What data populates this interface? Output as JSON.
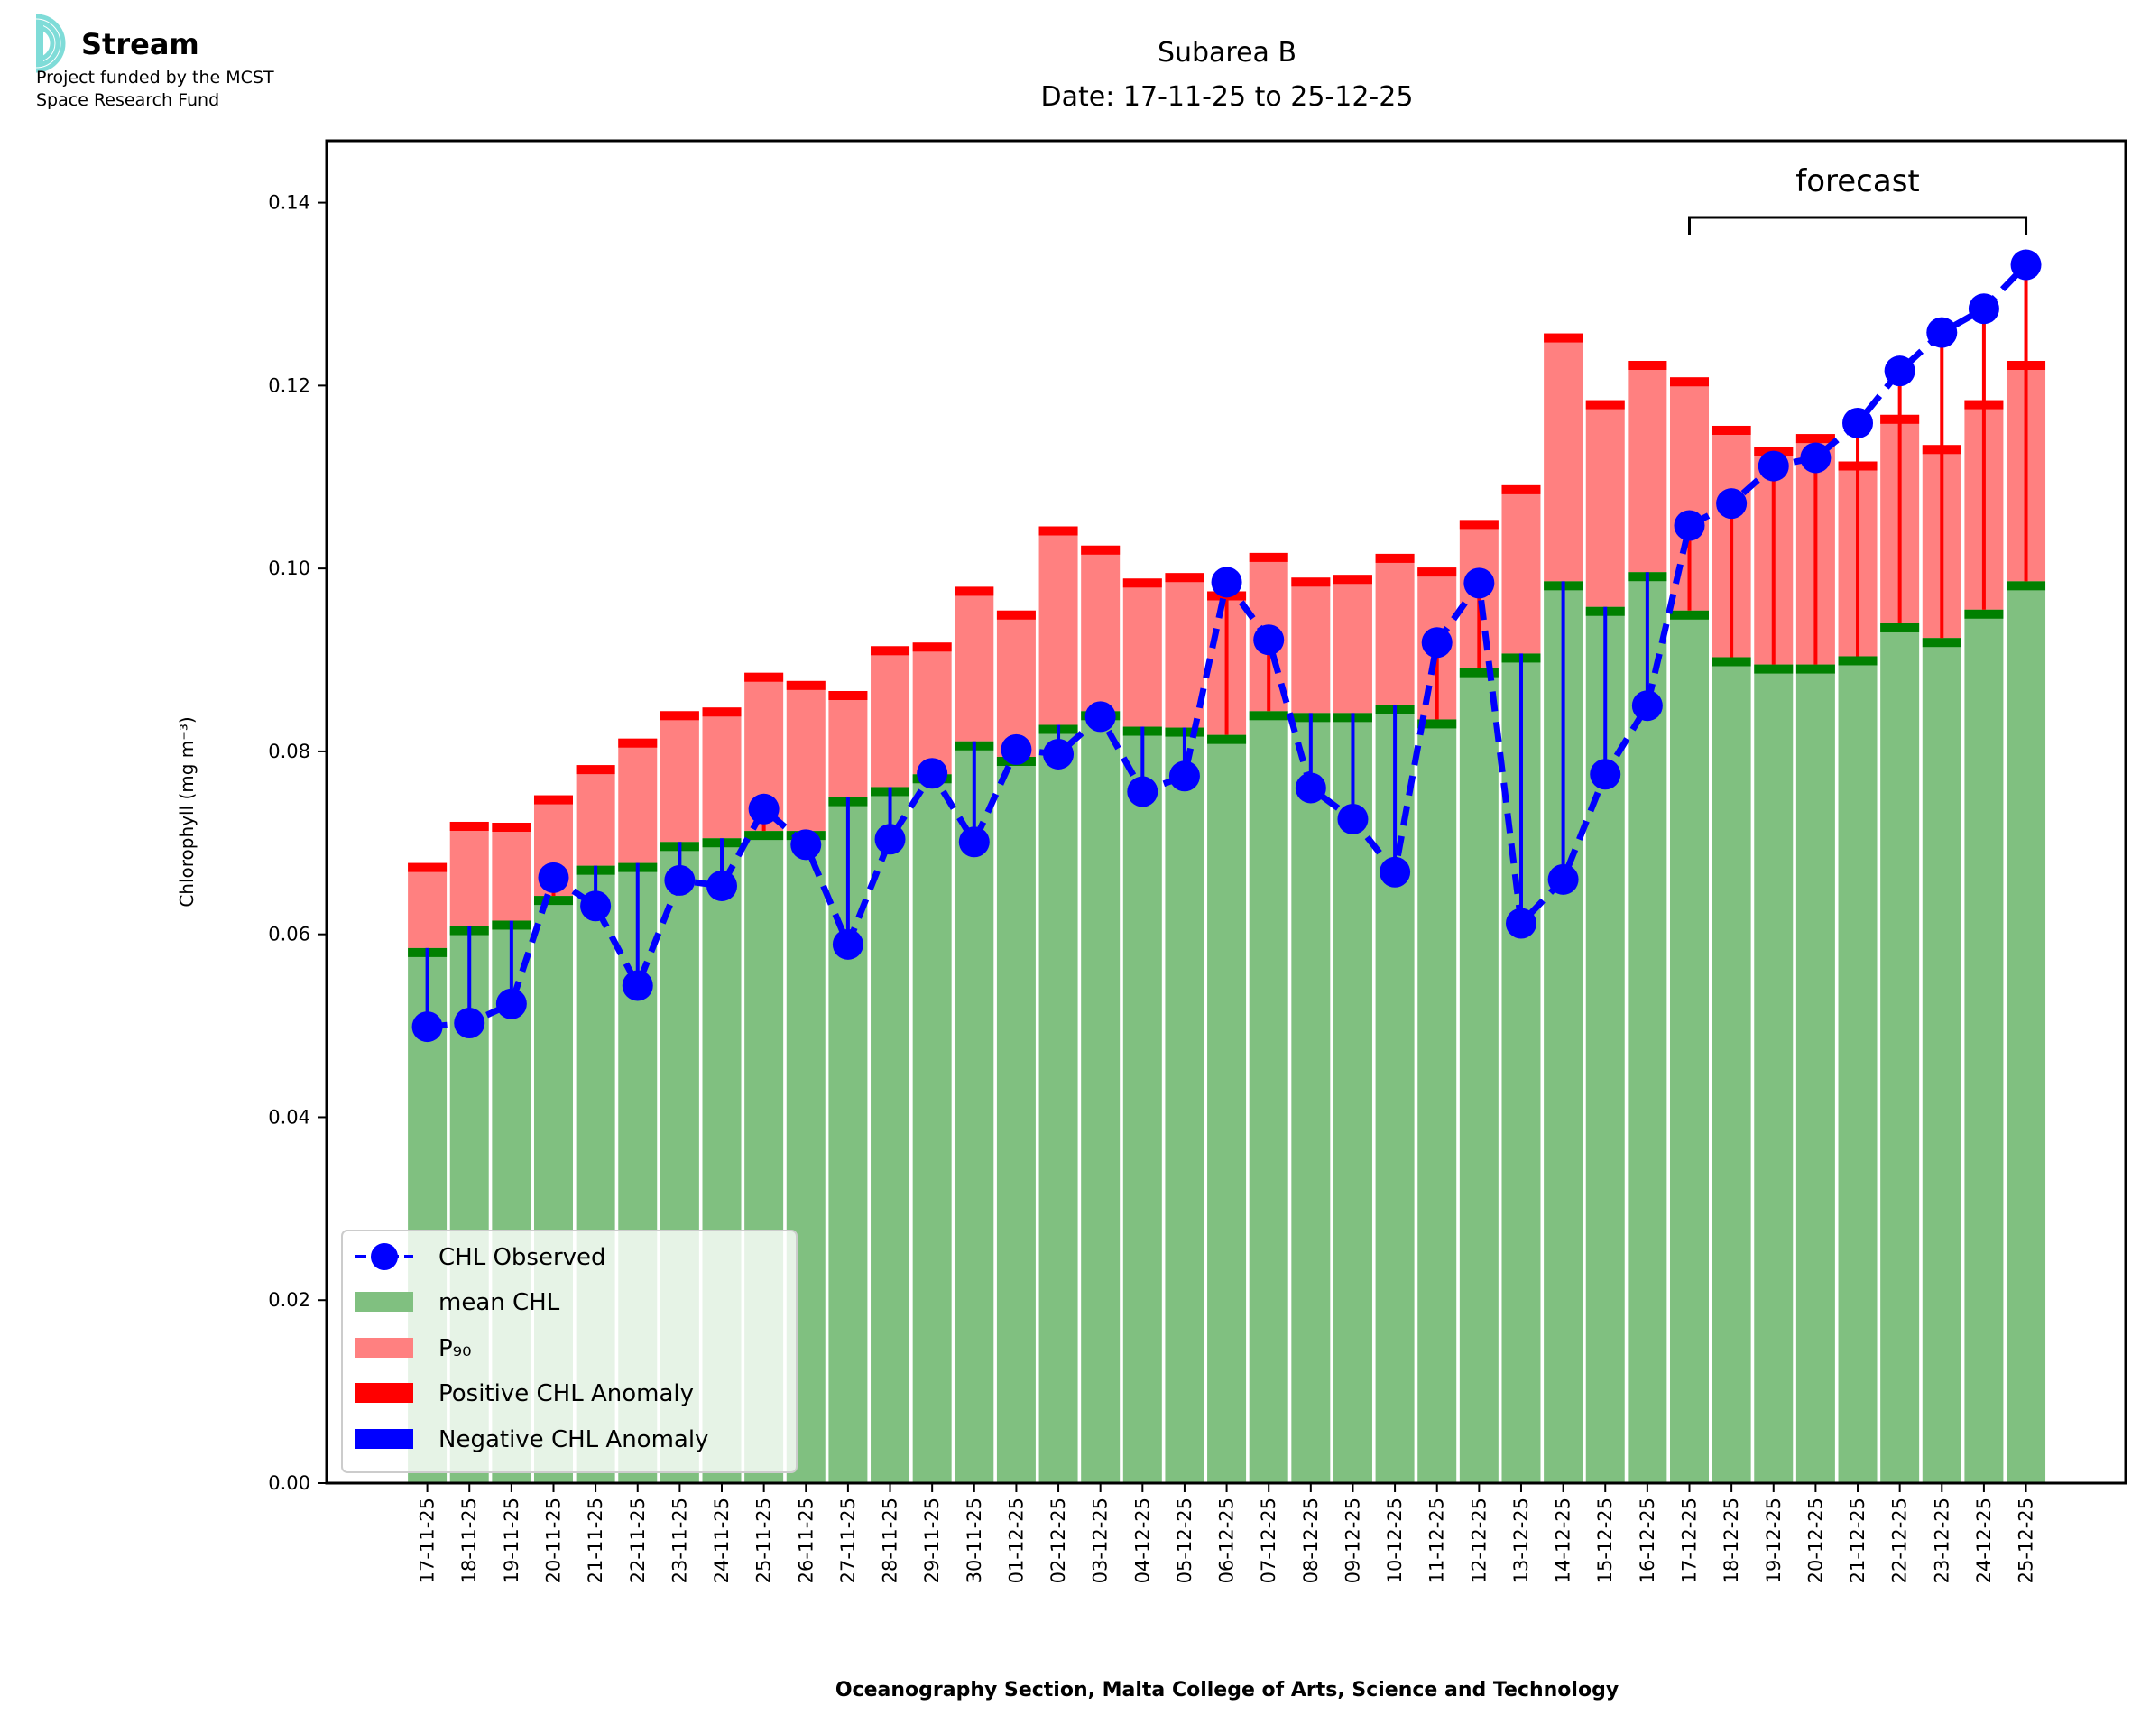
{
  "logo": {
    "name": "Stream",
    "line1": "Project funded by the MCST",
    "line2": "Space Research Fund",
    "color": "#7fdcd8"
  },
  "chart_data": {
    "type": "bar",
    "title_line1": "Subarea B",
    "title_line2": "Date: 17-11-25 to 25-12-25",
    "xlabel": "Oceanography Section, Malta College of Arts, Science and Technology",
    "ylabel": "Chlorophyll (mg m⁻³)",
    "ylim": [
      0,
      0.146
    ],
    "yticks": [
      "0.00",
      "0.02",
      "0.04",
      "0.06",
      "0.08",
      "0.10",
      "0.12",
      "0.14"
    ],
    "annotation": {
      "text": "forecast",
      "from": "17-12-25",
      "to": "25-12-25"
    },
    "legend": {
      "placement": "lower-left",
      "entries": [
        "CHL Observed",
        "mean CHL",
        "P₉₀",
        "Positive CHL Anomaly",
        "Negative CHL Anomaly"
      ]
    },
    "colors": {
      "mean": "#80c080",
      "mean_cap": "#008000",
      "p90": "#ff8080",
      "p90_cap": "#ff0000",
      "observed": "#0000ff",
      "pos": "#ff0000",
      "neg": "#0000ff"
    },
    "categories": [
      "17-11-25",
      "18-11-25",
      "19-11-25",
      "20-11-25",
      "21-11-25",
      "22-11-25",
      "23-11-25",
      "24-11-25",
      "25-11-25",
      "26-11-25",
      "27-11-25",
      "28-11-25",
      "29-11-25",
      "30-11-25",
      "01-12-25",
      "02-12-25",
      "03-12-25",
      "04-12-25",
      "05-12-25",
      "06-12-25",
      "07-12-25",
      "08-12-25",
      "09-12-25",
      "10-12-25",
      "11-12-25",
      "12-12-25",
      "13-12-25",
      "14-12-25",
      "15-12-25",
      "16-12-25",
      "17-12-25",
      "18-12-25",
      "19-12-25",
      "20-12-25",
      "21-12-25",
      "22-12-25",
      "23-12-25",
      "24-12-25",
      "25-12-25"
    ],
    "series": [
      {
        "name": "mean CHL",
        "values": [
          0.0585,
          0.0609,
          0.0615,
          0.0642,
          0.0675,
          0.0678,
          0.0701,
          0.0705,
          0.0713,
          0.0713,
          0.075,
          0.0761,
          0.0775,
          0.0811,
          0.0794,
          0.0829,
          0.0844,
          0.0827,
          0.0826,
          0.0818,
          0.0844,
          0.0842,
          0.0842,
          0.0851,
          0.0835,
          0.0891,
          0.0907,
          0.0986,
          0.0958,
          0.0996,
          0.0954,
          0.0903,
          0.0895,
          0.0895,
          0.0904,
          0.094,
          0.0924,
          0.0955,
          0.0986
        ]
      },
      {
        "name": "P90",
        "values": [
          0.0678,
          0.0723,
          0.0722,
          0.0752,
          0.0785,
          0.0814,
          0.0844,
          0.0848,
          0.0886,
          0.0877,
          0.0866,
          0.0915,
          0.0919,
          0.098,
          0.0954,
          0.1046,
          0.1025,
          0.0989,
          0.0995,
          0.0975,
          0.1017,
          0.099,
          0.0993,
          0.1016,
          0.1001,
          0.1053,
          0.1091,
          0.1257,
          0.1184,
          0.1227,
          0.1209,
          0.1156,
          0.1133,
          0.1147,
          0.1117,
          0.1168,
          0.1135,
          0.1184,
          0.1227
        ]
      },
      {
        "name": "CHL Observed",
        "values": [
          0.0499,
          0.0503,
          0.0524,
          0.0662,
          0.0631,
          0.0544,
          0.0659,
          0.0653,
          0.0737,
          0.0698,
          0.0589,
          0.0704,
          0.0776,
          0.0701,
          0.0802,
          0.0797,
          0.0838,
          0.0756,
          0.0773,
          0.0985,
          0.0922,
          0.076,
          0.0726,
          0.0668,
          0.0919,
          0.0984,
          0.0612,
          0.066,
          0.0775,
          0.085,
          0.1047,
          0.1071,
          0.1112,
          0.1121,
          0.1159,
          0.1216,
          0.1258,
          0.1284,
          0.1332
        ]
      }
    ]
  }
}
